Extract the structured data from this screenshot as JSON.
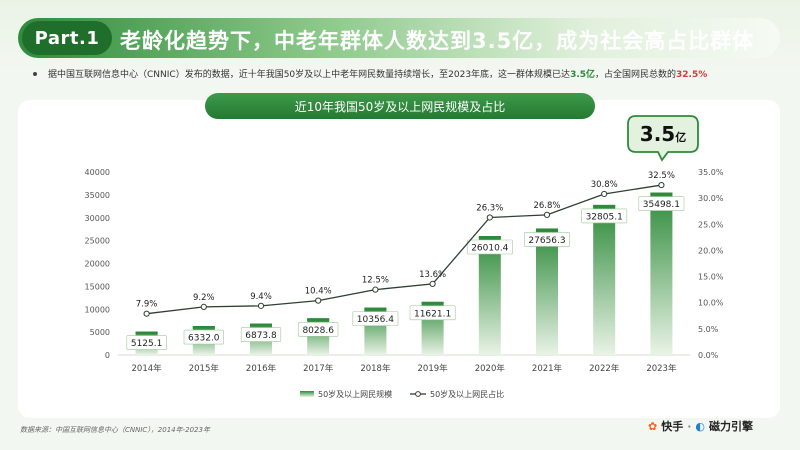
{
  "header": {
    "part_label": "Part.1",
    "title": "老龄化趋势下，中老年群体人数达到3.5亿，成为社会高占比群体"
  },
  "intro": {
    "text_before": "据中国互联网信息中心（CNNIC）发布的数据，近十年我国50岁及以上中老年网民数量持续增长，至2023年底，这一群体规模已达",
    "value_highlight": "3.5亿",
    "text_middle": "，占全国网民总数的",
    "percent_highlight": "32.5%"
  },
  "callout": {
    "number": "3.5",
    "unit": "亿"
  },
  "chart_data": {
    "type": "bar",
    "title": "近10年我国50岁及以上网民规模及占比",
    "categories": [
      "2014年",
      "2015年",
      "2016年",
      "2017年",
      "2018年",
      "2019年",
      "2020年",
      "2021年",
      "2022年",
      "2023年"
    ],
    "series": [
      {
        "name": "50岁及以上网民规模",
        "type": "bar",
        "axis": "left",
        "values": [
          5125.1,
          6332.0,
          6873.8,
          8028.6,
          10356.4,
          11621.1,
          26010.4,
          27656.3,
          32805.1,
          35498.1
        ],
        "labels": [
          "5125.1",
          "6332.0",
          "6873.8",
          "8028.6",
          "10356.4",
          "11621.1",
          "26010.4",
          "27656.3",
          "32805.1",
          "35498.1"
        ]
      },
      {
        "name": "50岁及以上网民占比",
        "type": "line",
        "axis": "right",
        "values": [
          7.9,
          9.2,
          9.4,
          10.4,
          12.5,
          13.6,
          26.3,
          26.8,
          30.8,
          32.5
        ],
        "labels": [
          "7.9%",
          "9.2%",
          "9.4%",
          "10.4%",
          "12.5%",
          "13.6%",
          "26.3%",
          "26.8%",
          "30.8%",
          "32.5%"
        ]
      }
    ],
    "y_left": {
      "min": 0,
      "max": 40000,
      "ticks": [
        "0",
        "5000",
        "10000",
        "15000",
        "20000",
        "25000",
        "30000",
        "35000",
        "40000"
      ]
    },
    "y_right": {
      "min": 0,
      "max": 35,
      "ticks": [
        "0.0%",
        "5.0%",
        "10.0%",
        "15.0%",
        "20.0%",
        "25.0%",
        "30.0%",
        "35.0%"
      ]
    },
    "grid": false,
    "legend_position": "bottom",
    "colors": {
      "bar_top": "#2e8a3a",
      "bar_bottom": "#e9f3e6",
      "line": "#2f3f33",
      "marker_fill": "#ffffff"
    }
  },
  "footer": {
    "source": "数据来源：中国互联网信息中心（CNNIC），2014年-2023年",
    "brand_kuaishou": "快手",
    "brand_dot": "·",
    "brand_cili": "磁力引擎"
  }
}
